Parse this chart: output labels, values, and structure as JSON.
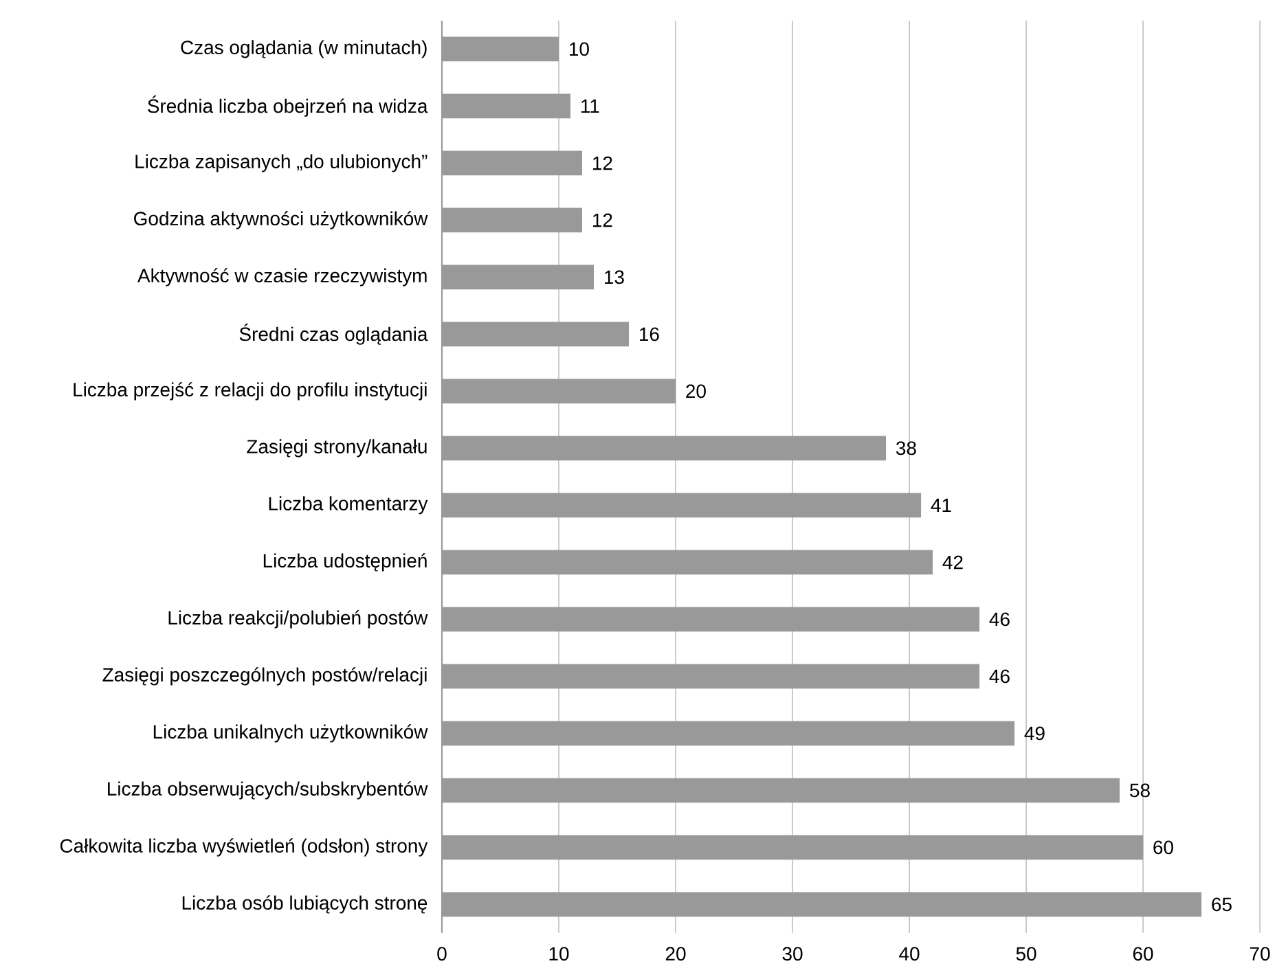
{
  "chart_data": {
    "type": "bar",
    "orientation": "horizontal",
    "categories": [
      "Czas oglądania (w minutach)",
      "Średnia liczba obejrzeń na widza",
      "Liczba zapisanych „do ulubionych”",
      "Godzina aktywności użytkowników",
      "Aktywność w czasie rzeczywistym",
      "Średni czas oglądania",
      "Liczba przejść z relacji do profilu instytucji",
      "Zasięgi strony/kanału",
      "Liczba komentarzy",
      "Liczba udostępnień",
      "Liczba reakcji/polubień postów",
      "Zasięgi poszczególnych postów/relacji",
      "Liczba unikalnych użytkowników",
      "Liczba obserwujących/subskrybentów",
      "Całkowita liczba wyświetleń (odsłon) strony",
      "Liczba osób lubiących stronę"
    ],
    "values": [
      10,
      11,
      12,
      12,
      13,
      16,
      20,
      38,
      41,
      42,
      46,
      46,
      49,
      58,
      60,
      65
    ],
    "color": "#999999",
    "xlim": [
      0,
      70
    ],
    "xticks": [
      0,
      10,
      20,
      30,
      40,
      50,
      60,
      70
    ],
    "grid": "x",
    "data_labels": true
  }
}
